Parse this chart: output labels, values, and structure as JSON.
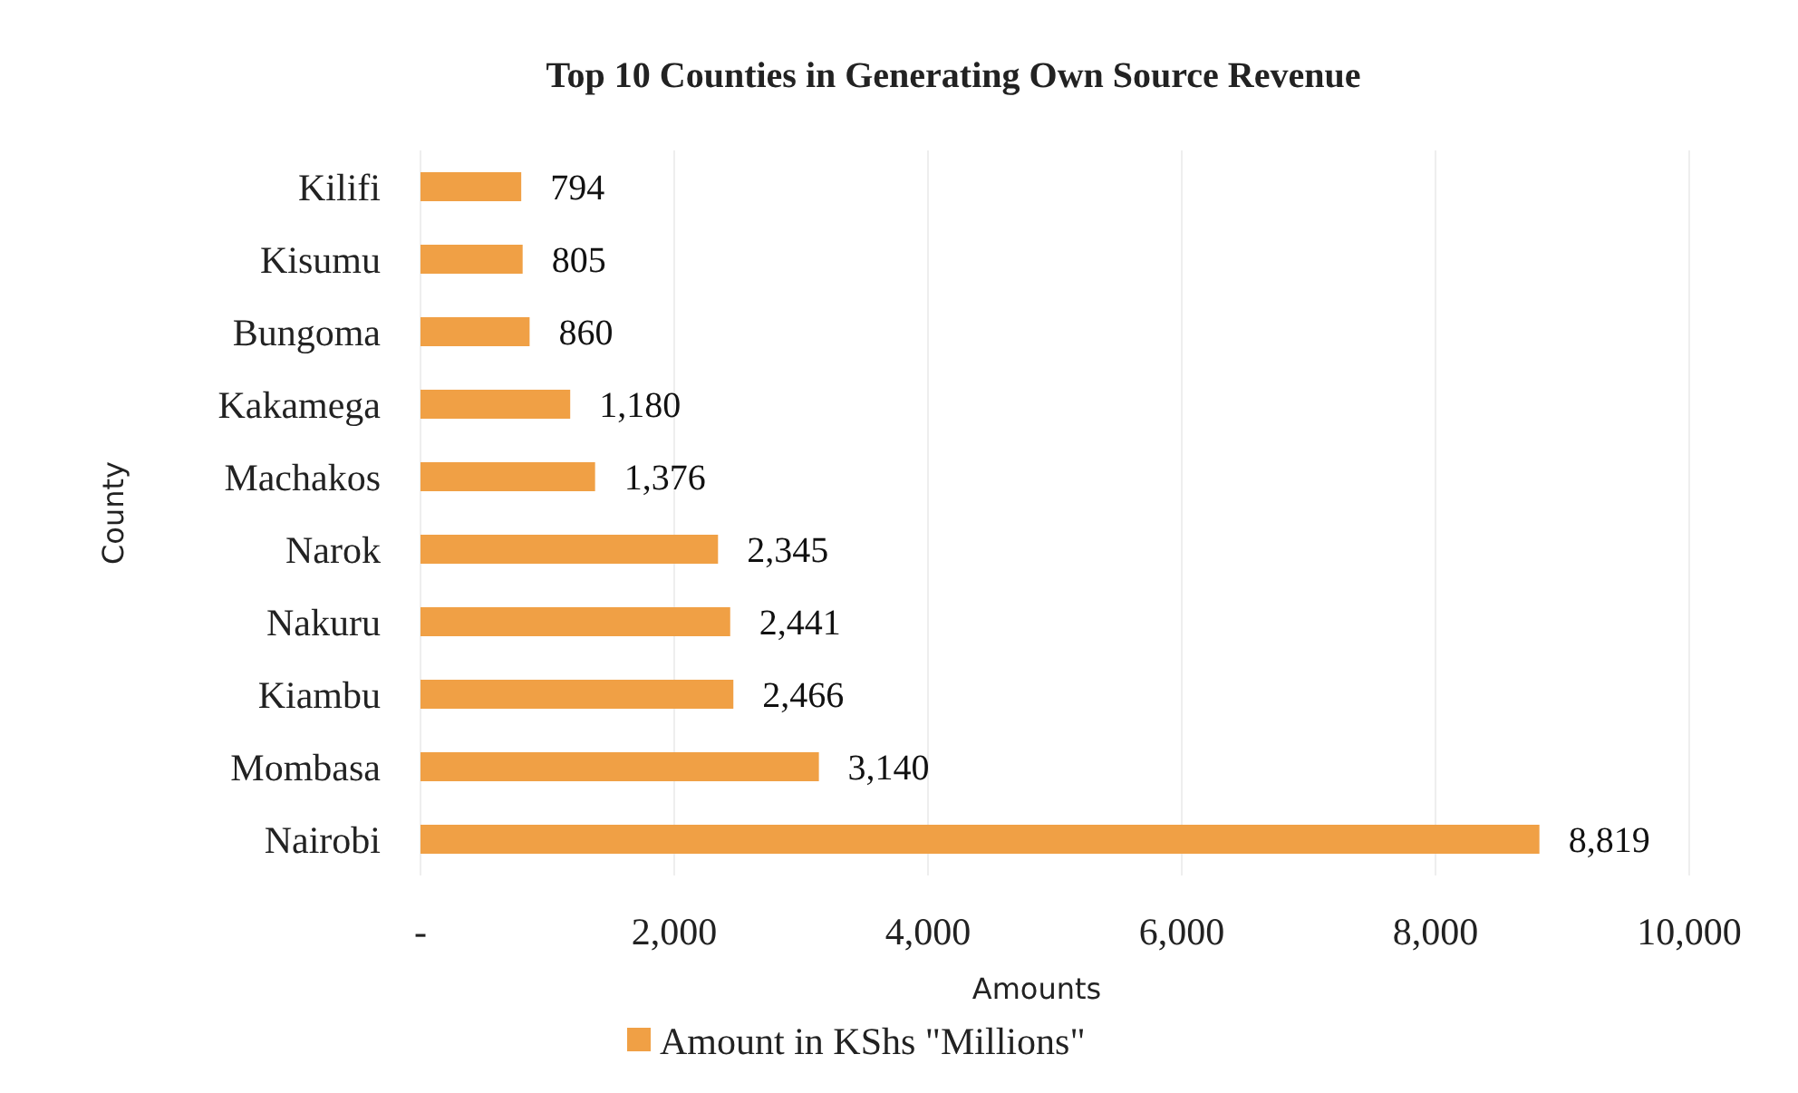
{
  "chart_data": {
    "type": "bar",
    "orientation": "horizontal",
    "title": "Top 10 Counties in Generating Own Source Revenue",
    "xlabel": "Amounts",
    "ylabel": "County",
    "categories": [
      "Kilifi",
      "Kisumu",
      "Bungoma",
      "Kakamega",
      "Machakos",
      "Narok",
      "Nakuru",
      "Kiambu",
      "Mombasa",
      "Nairobi"
    ],
    "series": [
      {
        "name": "Amount in KShs \"Millions\"",
        "color": "#f0a045",
        "values": [
          794,
          805,
          860,
          1180,
          1376,
          2345,
          2441,
          2466,
          3140,
          8819
        ],
        "value_labels": [
          "794",
          "805",
          "860",
          "1,180",
          "1,376",
          "2,345",
          "2,441",
          "2,466",
          "3,140",
          "8,819"
        ]
      }
    ],
    "xlim": [
      0,
      10000
    ],
    "xticks": [
      {
        "value": 0,
        "label": "-"
      },
      {
        "value": 2000,
        "label": "2,000"
      },
      {
        "value": 4000,
        "label": "4,000"
      },
      {
        "value": 6000,
        "label": "6,000"
      },
      {
        "value": 8000,
        "label": "8,000"
      },
      {
        "value": 10000,
        "label": "10,000"
      }
    ],
    "grid": "x",
    "legend": "bottom"
  }
}
